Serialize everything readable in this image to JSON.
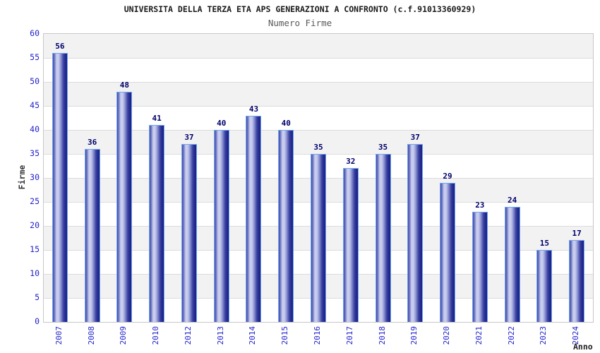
{
  "chart_data": {
    "type": "bar",
    "title": "UNIVERSITA DELLA TERZA ETA APS GENERAZIONI A CONFRONTO (c.f.91013360929)",
    "subtitle": "Numero Firme",
    "xlabel": "Anno",
    "ylabel": "Firme",
    "categories": [
      "2007",
      "2008",
      "2009",
      "2010",
      "2012",
      "2013",
      "2014",
      "2015",
      "2016",
      "2017",
      "2018",
      "2019",
      "2020",
      "2021",
      "2022",
      "2023",
      "2024"
    ],
    "values": [
      56,
      36,
      48,
      41,
      37,
      40,
      43,
      40,
      35,
      32,
      35,
      37,
      29,
      23,
      24,
      15,
      17
    ],
    "ylim": [
      0,
      60
    ],
    "ytick_step": 5,
    "grid": true,
    "stripes": true,
    "legend_position": "none",
    "bar_value_labels_shown": true
  },
  "colors": {
    "tick_label": "#2222cc",
    "value_label": "#00006b",
    "title": "#1a1a1a",
    "subtitle": "#5a5a5a",
    "axis_label": "#333333",
    "stripe_gray": "#f2f2f2",
    "stripe_white": "#ffffff",
    "gridline": "#dcdcdc",
    "plot_border": "#c8c8c8",
    "bar_border": "#6fa6f0",
    "bar_gradient_stops": [
      "#4049a8",
      "#7b82c8",
      "#c8cdee",
      "#c8cdee",
      "#a3a9dd",
      "#6d74c0",
      "#3a42a0",
      "#252b90",
      "#1b2083"
    ],
    "background": "#ffffff"
  }
}
